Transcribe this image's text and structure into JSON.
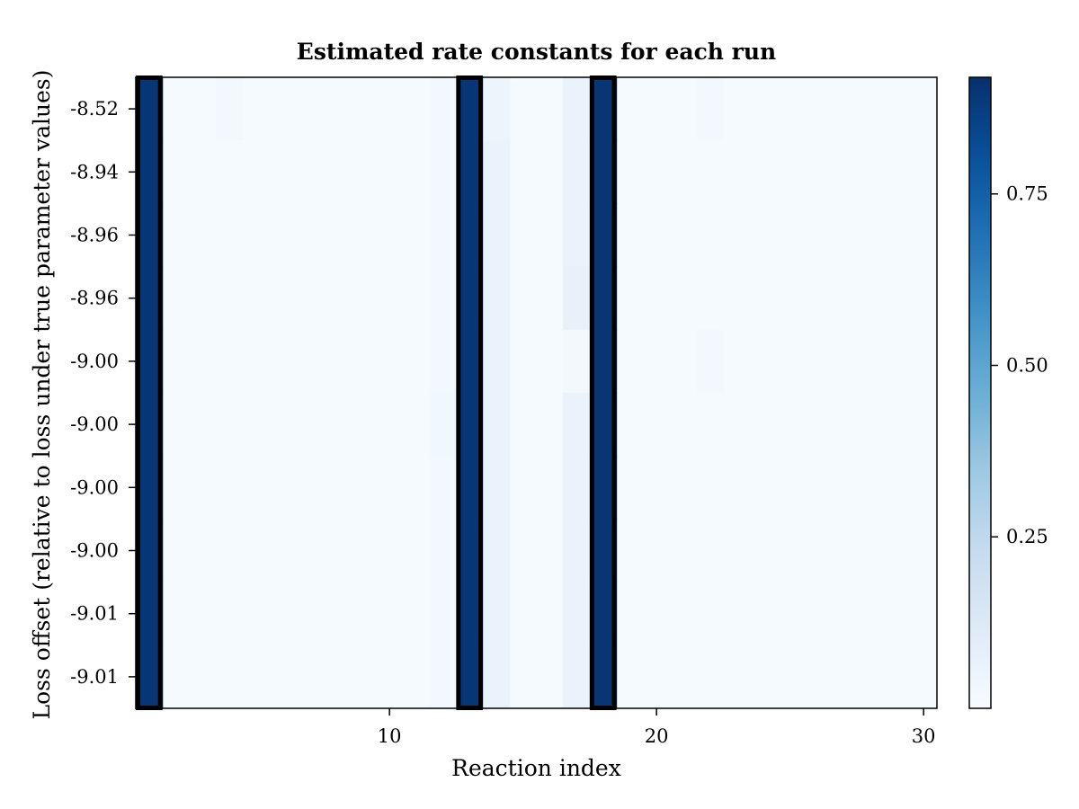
{
  "chart_data": {
    "type": "heatmap",
    "title": "Estimated rate constants for each run",
    "xlabel": "Reaction index",
    "ylabel": "Loss offset (relative to loss under true parameter values)",
    "x_range": [
      1,
      31
    ],
    "x_ticks": [
      10,
      20,
      30
    ],
    "y_tick_labels": [
      "-8.52",
      "-8.94",
      "-8.96",
      "-8.96",
      "-9.00",
      "-9.00",
      "-9.00",
      "-9.00",
      "-9.01",
      "-9.01"
    ],
    "colorbar": {
      "colormap": "Blues",
      "vmin": 0.0,
      "vmax": 0.92,
      "ticks": [
        0.25,
        0.5,
        0.75
      ],
      "tick_labels": [
        "0.25",
        "0.50",
        "0.75"
      ]
    },
    "background_value": 0.01,
    "highlighted_columns": [
      1,
      13,
      18
    ],
    "columns": [
      {
        "index": 1,
        "values": [
          0.9,
          0.9,
          0.9,
          0.9,
          0.9,
          0.9,
          0.9,
          0.9,
          0.9,
          0.9
        ]
      },
      {
        "index": 4,
        "values": [
          0.02,
          0.01,
          0.01,
          0.01,
          0.01,
          0.01,
          0.01,
          0.01,
          0.01,
          0.01
        ]
      },
      {
        "index": 12,
        "values": [
          0.02,
          0.02,
          0.02,
          0.02,
          0.02,
          0.03,
          0.02,
          0.02,
          0.02,
          0.02
        ]
      },
      {
        "index": 13,
        "values": [
          0.9,
          0.9,
          0.9,
          0.9,
          0.9,
          0.9,
          0.9,
          0.9,
          0.9,
          0.9
        ]
      },
      {
        "index": 14,
        "values": [
          0.05,
          0.06,
          0.06,
          0.06,
          0.06,
          0.06,
          0.06,
          0.06,
          0.06,
          0.06
        ]
      },
      {
        "index": 17,
        "values": [
          0.06,
          0.06,
          0.06,
          0.07,
          0.02,
          0.06,
          0.06,
          0.06,
          0.06,
          0.06
        ]
      },
      {
        "index": 18,
        "values": [
          0.9,
          0.9,
          0.9,
          0.9,
          0.9,
          0.9,
          0.9,
          0.9,
          0.9,
          0.9
        ]
      },
      {
        "index": 22,
        "values": [
          0.02,
          0.01,
          0.01,
          0.01,
          0.02,
          0.01,
          0.01,
          0.01,
          0.01,
          0.01
        ]
      }
    ]
  }
}
